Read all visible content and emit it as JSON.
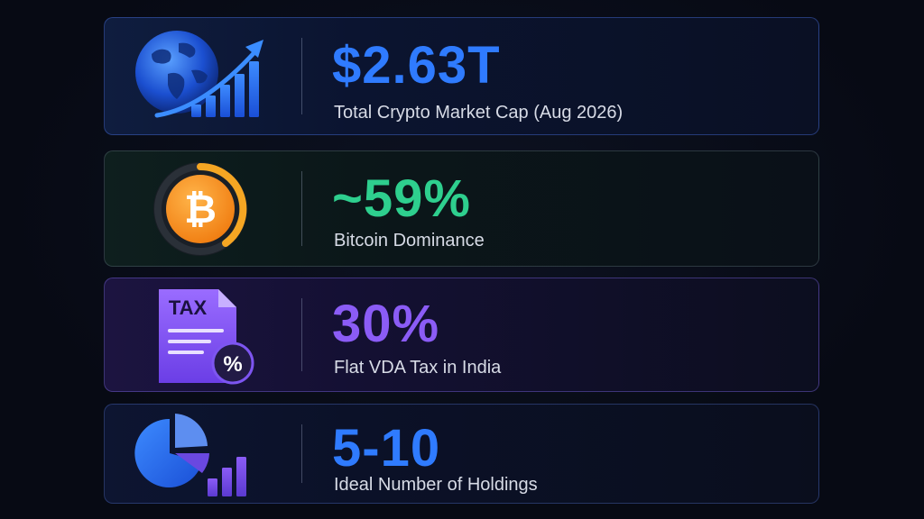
{
  "stats": [
    {
      "value": "$2.63T",
      "label": "Total Crypto Market Cap (Aug 2026)",
      "icon": "globe-growth-chart-icon",
      "accent": "#2f7bff"
    },
    {
      "value": "~59%",
      "label": "Bitcoin Dominance",
      "icon": "bitcoin-icon",
      "accent": "#2ecf8e"
    },
    {
      "value": "30%",
      "label": "Flat VDA Tax in India",
      "icon": "tax-document-icon",
      "icon_text": "TAX",
      "accent": "#8b5cf6"
    },
    {
      "value": "5-10",
      "label": "Ideal Number of Holdings",
      "icon": "pie-chart-bars-icon",
      "accent": "#2f7bff"
    }
  ]
}
